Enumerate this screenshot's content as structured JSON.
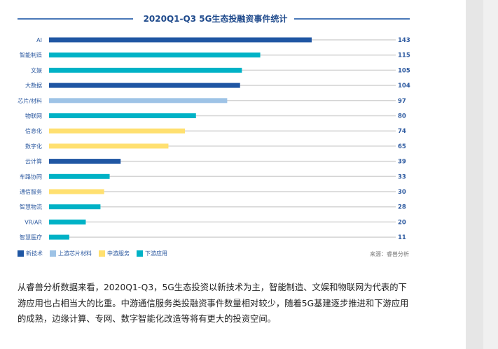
{
  "chart_data": {
    "type": "bar",
    "orientation": "horizontal",
    "title": "2020Q1-Q3 5G生态投融资事件统计",
    "categories": [
      "AI",
      "智能制造",
      "文娱",
      "大数据",
      "芯片/材料",
      "物联网",
      "信息化",
      "数字化",
      "云计算",
      "车路协同",
      "通信服务",
      "智慧物流",
      "VR/AR",
      "智慧医疗"
    ],
    "values": [
      143,
      115,
      105,
      104,
      97,
      80,
      74,
      65,
      39,
      33,
      30,
      28,
      20,
      11
    ],
    "groups": [
      "新技术",
      "下游应用",
      "下游应用",
      "新技术",
      "上游芯片材料",
      "下游应用",
      "中游服务",
      "中游服务",
      "新技术",
      "下游应用",
      "中游服务",
      "下游应用",
      "下游应用",
      "下游应用"
    ],
    "legend": [
      {
        "name": "新技术",
        "color": "#1f56a3"
      },
      {
        "name": "上游芯片材料",
        "color": "#9ec3e6"
      },
      {
        "name": "中游服务",
        "color": "#ffe070"
      },
      {
        "name": "下游应用",
        "color": "#00b2c6"
      }
    ],
    "legend_position": "bottom-left",
    "xlim": [
      0,
      189
    ],
    "grid": false
  },
  "source": "来源：睿兽分析",
  "paragraph": "从睿兽分析数据来看，2020Q1-Q3，5G生态投资以新技术为主，智能制造、文娱和物联网为代表的下游应用也占相当大的比重。中游通信服务类投融资事件数量相对较少，随着5G基建逐步推进和下游应用的成熟，边缘计算、专网、数字智能化改造等将有更大的投资空间。"
}
